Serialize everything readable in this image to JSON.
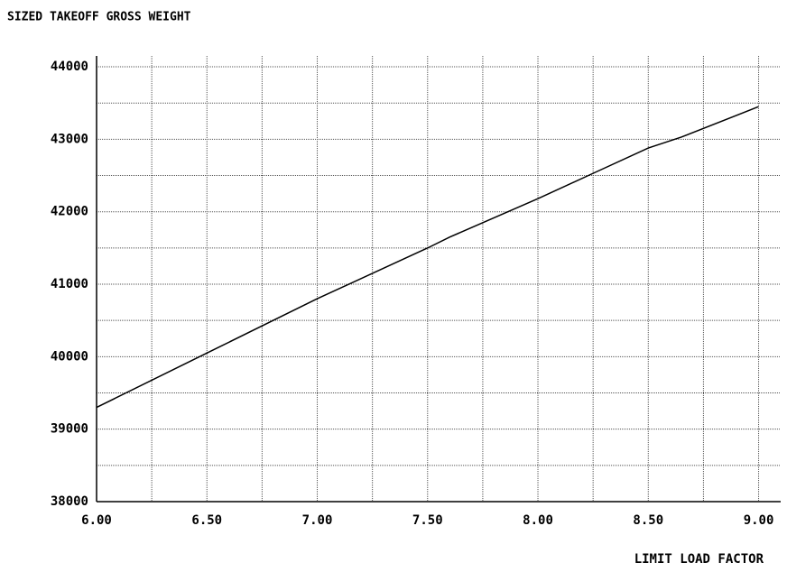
{
  "chart_data": {
    "type": "line",
    "title": "SIZED TAKEOFF GROSS WEIGHT",
    "x_label": "LIMIT LOAD FACTOR",
    "x": [
      6.0,
      6.5,
      7.0,
      7.5,
      7.6,
      8.0,
      8.25,
      8.5,
      8.65,
      9.0
    ],
    "series": [
      {
        "name": "SIZED TAKEOFF GROSS WEIGHT",
        "color": "#000000",
        "values": [
          39300,
          40050,
          40800,
          41500,
          41650,
          42180,
          42530,
          42880,
          43030,
          43450
        ]
      }
    ],
    "xlim": [
      6.0,
      9.1
    ],
    "xticks": [
      {
        "value": 6.0,
        "label": "6.00"
      },
      {
        "value": 6.5,
        "label": "6.50"
      },
      {
        "value": 7.0,
        "label": "7.00"
      },
      {
        "value": 7.5,
        "label": "7.50"
      },
      {
        "value": 8.0,
        "label": "8.00"
      },
      {
        "value": 8.5,
        "label": "8.50"
      },
      {
        "value": 9.0,
        "label": "9.00"
      }
    ],
    "xgrid": [
      6.25,
      6.75,
      7.25,
      7.75,
      8.25,
      8.75
    ],
    "ylim": [
      38000,
      44150
    ],
    "yticks": [
      38000,
      39000,
      40000,
      41000,
      42000,
      43000,
      44000
    ],
    "ygrid": [
      38500,
      39500,
      40500,
      41500,
      42500,
      43500
    ],
    "grid": true
  }
}
